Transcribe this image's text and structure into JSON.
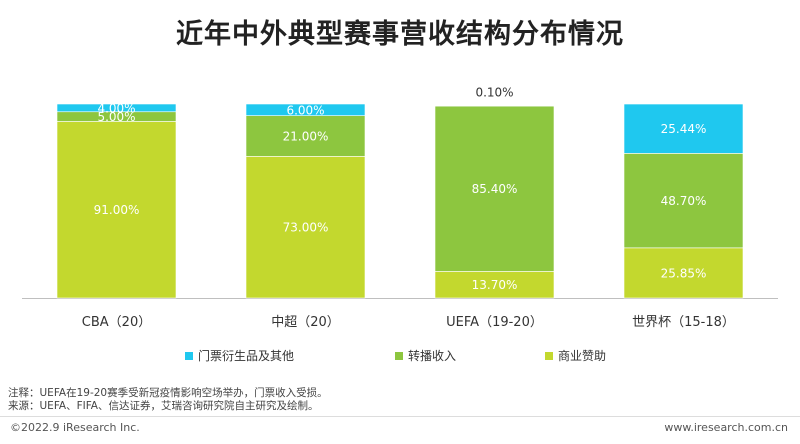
{
  "title": "近年中外典型赛事营收结构分布情况",
  "chart_data": {
    "type": "bar",
    "stacked": true,
    "categories": [
      "CBA（20）",
      "中超（20）",
      "UEFA（19-20）",
      "世界杯（15-18）"
    ],
    "series": [
      {
        "name": "商业赞助",
        "color": "#C3D82E",
        "values": [
          91.0,
          73.0,
          13.7,
          25.85
        ]
      },
      {
        "name": "转播收入",
        "color": "#8DC63F",
        "values": [
          5.0,
          21.0,
          85.4,
          48.7
        ]
      },
      {
        "name": "门票衍生品及其他",
        "color": "#1FC8EF",
        "values": [
          4.0,
          6.0,
          0.1,
          25.44
        ]
      }
    ],
    "labels": [
      [
        "91.00%",
        "73.00%",
        "13.70%",
        "25.85%"
      ],
      [
        "5.00%",
        "21.00%",
        "85.40%",
        "48.70%"
      ],
      [
        "4.00%",
        "6.00%",
        "0.10%",
        "25.44%"
      ]
    ],
    "legend_order": [
      2,
      1,
      0
    ],
    "legend_position": "bottom",
    "ylim": [
      0,
      100
    ]
  },
  "notes": {
    "line1": "注释：UEFA在19-20赛季受新冠疫情影响空场举办，门票收入受损。",
    "line2": "来源：UEFA、FIFA、信达证券，艾瑞咨询研究院自主研究及绘制。"
  },
  "footer": {
    "copyright": "©2022.9 iResearch Inc.",
    "site": "www.iresearch.com.cn"
  }
}
